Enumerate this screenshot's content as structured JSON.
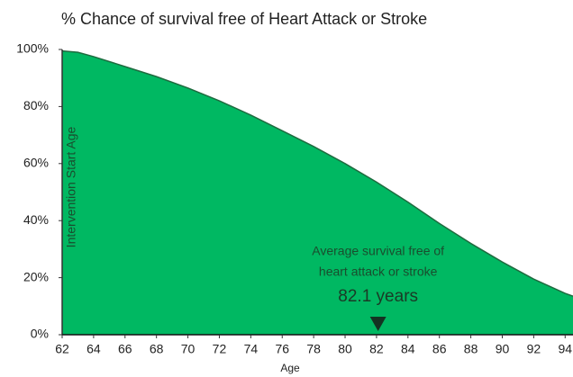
{
  "chart_data": {
    "type": "area",
    "title": "% Chance of survival free of Heart Attack or Stroke",
    "x_label": "Age",
    "x": [
      62,
      63,
      64,
      66,
      68,
      70,
      72,
      74,
      76,
      78,
      80,
      82,
      84,
      86,
      88,
      90,
      92,
      94,
      94.5
    ],
    "values": [
      99.5,
      99,
      97.5,
      94,
      90.5,
      86.5,
      82,
      77,
      71.5,
      66,
      60,
      53.5,
      46.5,
      39,
      32,
      25.5,
      19.5,
      14.5,
      13.5
    ],
    "color": "#00b862",
    "line_color": "#1e6b3f",
    "xlim": [
      62,
      94.5
    ],
    "ylim": [
      0,
      100
    ],
    "xticks": [
      62,
      64,
      66,
      68,
      70,
      72,
      74,
      76,
      78,
      80,
      82,
      84,
      86,
      88,
      90,
      92,
      94
    ],
    "yticks": [
      {
        "value": 0,
        "label": "0%"
      },
      {
        "value": 20,
        "label": "20%"
      },
      {
        "value": 40,
        "label": "40%"
      },
      {
        "value": 60,
        "label": "60%"
      },
      {
        "value": 80,
        "label": "80%"
      },
      {
        "value": 100,
        "label": "100%"
      }
    ],
    "vertical_label": "Intervention Start Age",
    "annotation": {
      "x": 82.1,
      "label": "82.1 years",
      "text": [
        "Average survival free of",
        "heart attack or stroke"
      ]
    }
  }
}
